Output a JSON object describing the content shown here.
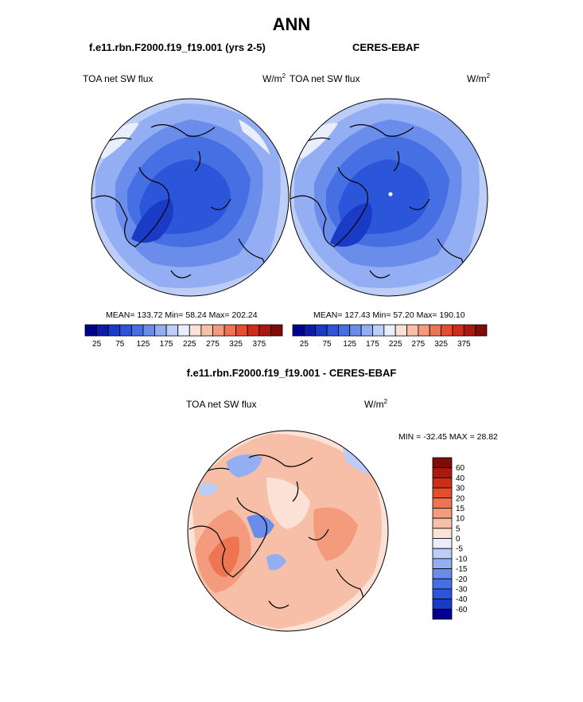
{
  "figure": {
    "title": "ANN",
    "left_model": "f.e11.rbn.F2000.f19_f19.001 (yrs 2-5)",
    "right_obs": "CERES-EBAF",
    "diff_title": "f.e11.rbn.F2000.f19_f19.001 - CERES-EBAF"
  },
  "chart_data": [
    {
      "type": "heatmap",
      "projection": "north polar stereographic",
      "variable": "TOA net SW flux",
      "units": "W/m",
      "units_exp": "2",
      "stats": {
        "mean": 133.72,
        "min": 58.24,
        "max": 202.24
      },
      "stats_text": "MEAN= 133.72  Min=  58.24  Max= 202.24",
      "colorbar_levels": [
        25,
        50,
        75,
        100,
        125,
        150,
        175,
        200,
        225,
        250,
        275,
        300,
        325,
        350,
        375
      ],
      "colorbar_ticklabels": [
        "25",
        "75",
        "125",
        "175",
        "225",
        "275",
        "325",
        "375"
      ],
      "colors": [
        "#00008c",
        "#0b1ca6",
        "#1a3bc6",
        "#2c56d9",
        "#466fe3",
        "#6a8deb",
        "#93aef2",
        "#bccdf7",
        "#e8eefb",
        "#fbe1d6",
        "#f7bfa8",
        "#f39b7c",
        "#ee7552",
        "#e44e2c",
        "#cc2e17",
        "#a91a0e",
        "#7d0d06"
      ]
    },
    {
      "type": "heatmap",
      "projection": "north polar stereographic",
      "variable": "TOA net SW flux",
      "units": "W/m",
      "units_exp": "2",
      "stats": {
        "mean": 127.43,
        "min": 57.2,
        "max": 190.1
      },
      "stats_text": "MEAN= 127.43  Min=  57.20  Max= 190.10",
      "colorbar_levels": [
        25,
        50,
        75,
        100,
        125,
        150,
        175,
        200,
        225,
        250,
        275,
        300,
        325,
        350,
        375
      ],
      "colorbar_ticklabels": [
        "25",
        "75",
        "125",
        "175",
        "225",
        "275",
        "325",
        "375"
      ],
      "colors": [
        "#00008c",
        "#0b1ca6",
        "#1a3bc6",
        "#2c56d9",
        "#466fe3",
        "#6a8deb",
        "#93aef2",
        "#bccdf7",
        "#e8eefb",
        "#fbe1d6",
        "#f7bfa8",
        "#f39b7c",
        "#ee7552",
        "#e44e2c",
        "#cc2e17",
        "#a91a0e",
        "#7d0d06"
      ]
    },
    {
      "type": "heatmap",
      "projection": "north polar stereographic",
      "variable": "TOA net SW flux",
      "units": "W/m",
      "units_exp": "2",
      "stats": {
        "min": -32.45,
        "max": 28.82
      },
      "stats_text": "MIN = -32.45 MAX =  28.82",
      "colorbar_levels": [
        60,
        40,
        30,
        20,
        15,
        10,
        5,
        0,
        -5,
        -10,
        -15,
        -20,
        -30,
        -40,
        -60
      ],
      "colorbar_ticklabels": [
        "60",
        "40",
        "30",
        "20",
        "15",
        "10",
        "5",
        "0",
        "-5",
        "-10",
        "-15",
        "-20",
        "-30",
        "-40",
        "-60"
      ],
      "colors": [
        "#7d0d06",
        "#a91a0e",
        "#cc2e17",
        "#e44e2c",
        "#ee7552",
        "#f39b7c",
        "#f7bfa8",
        "#fbe1d6",
        "#e8eefb",
        "#bccdf7",
        "#93aef2",
        "#6a8deb",
        "#466fe3",
        "#2c56d9",
        "#1a3bc6",
        "#00008c"
      ]
    }
  ]
}
